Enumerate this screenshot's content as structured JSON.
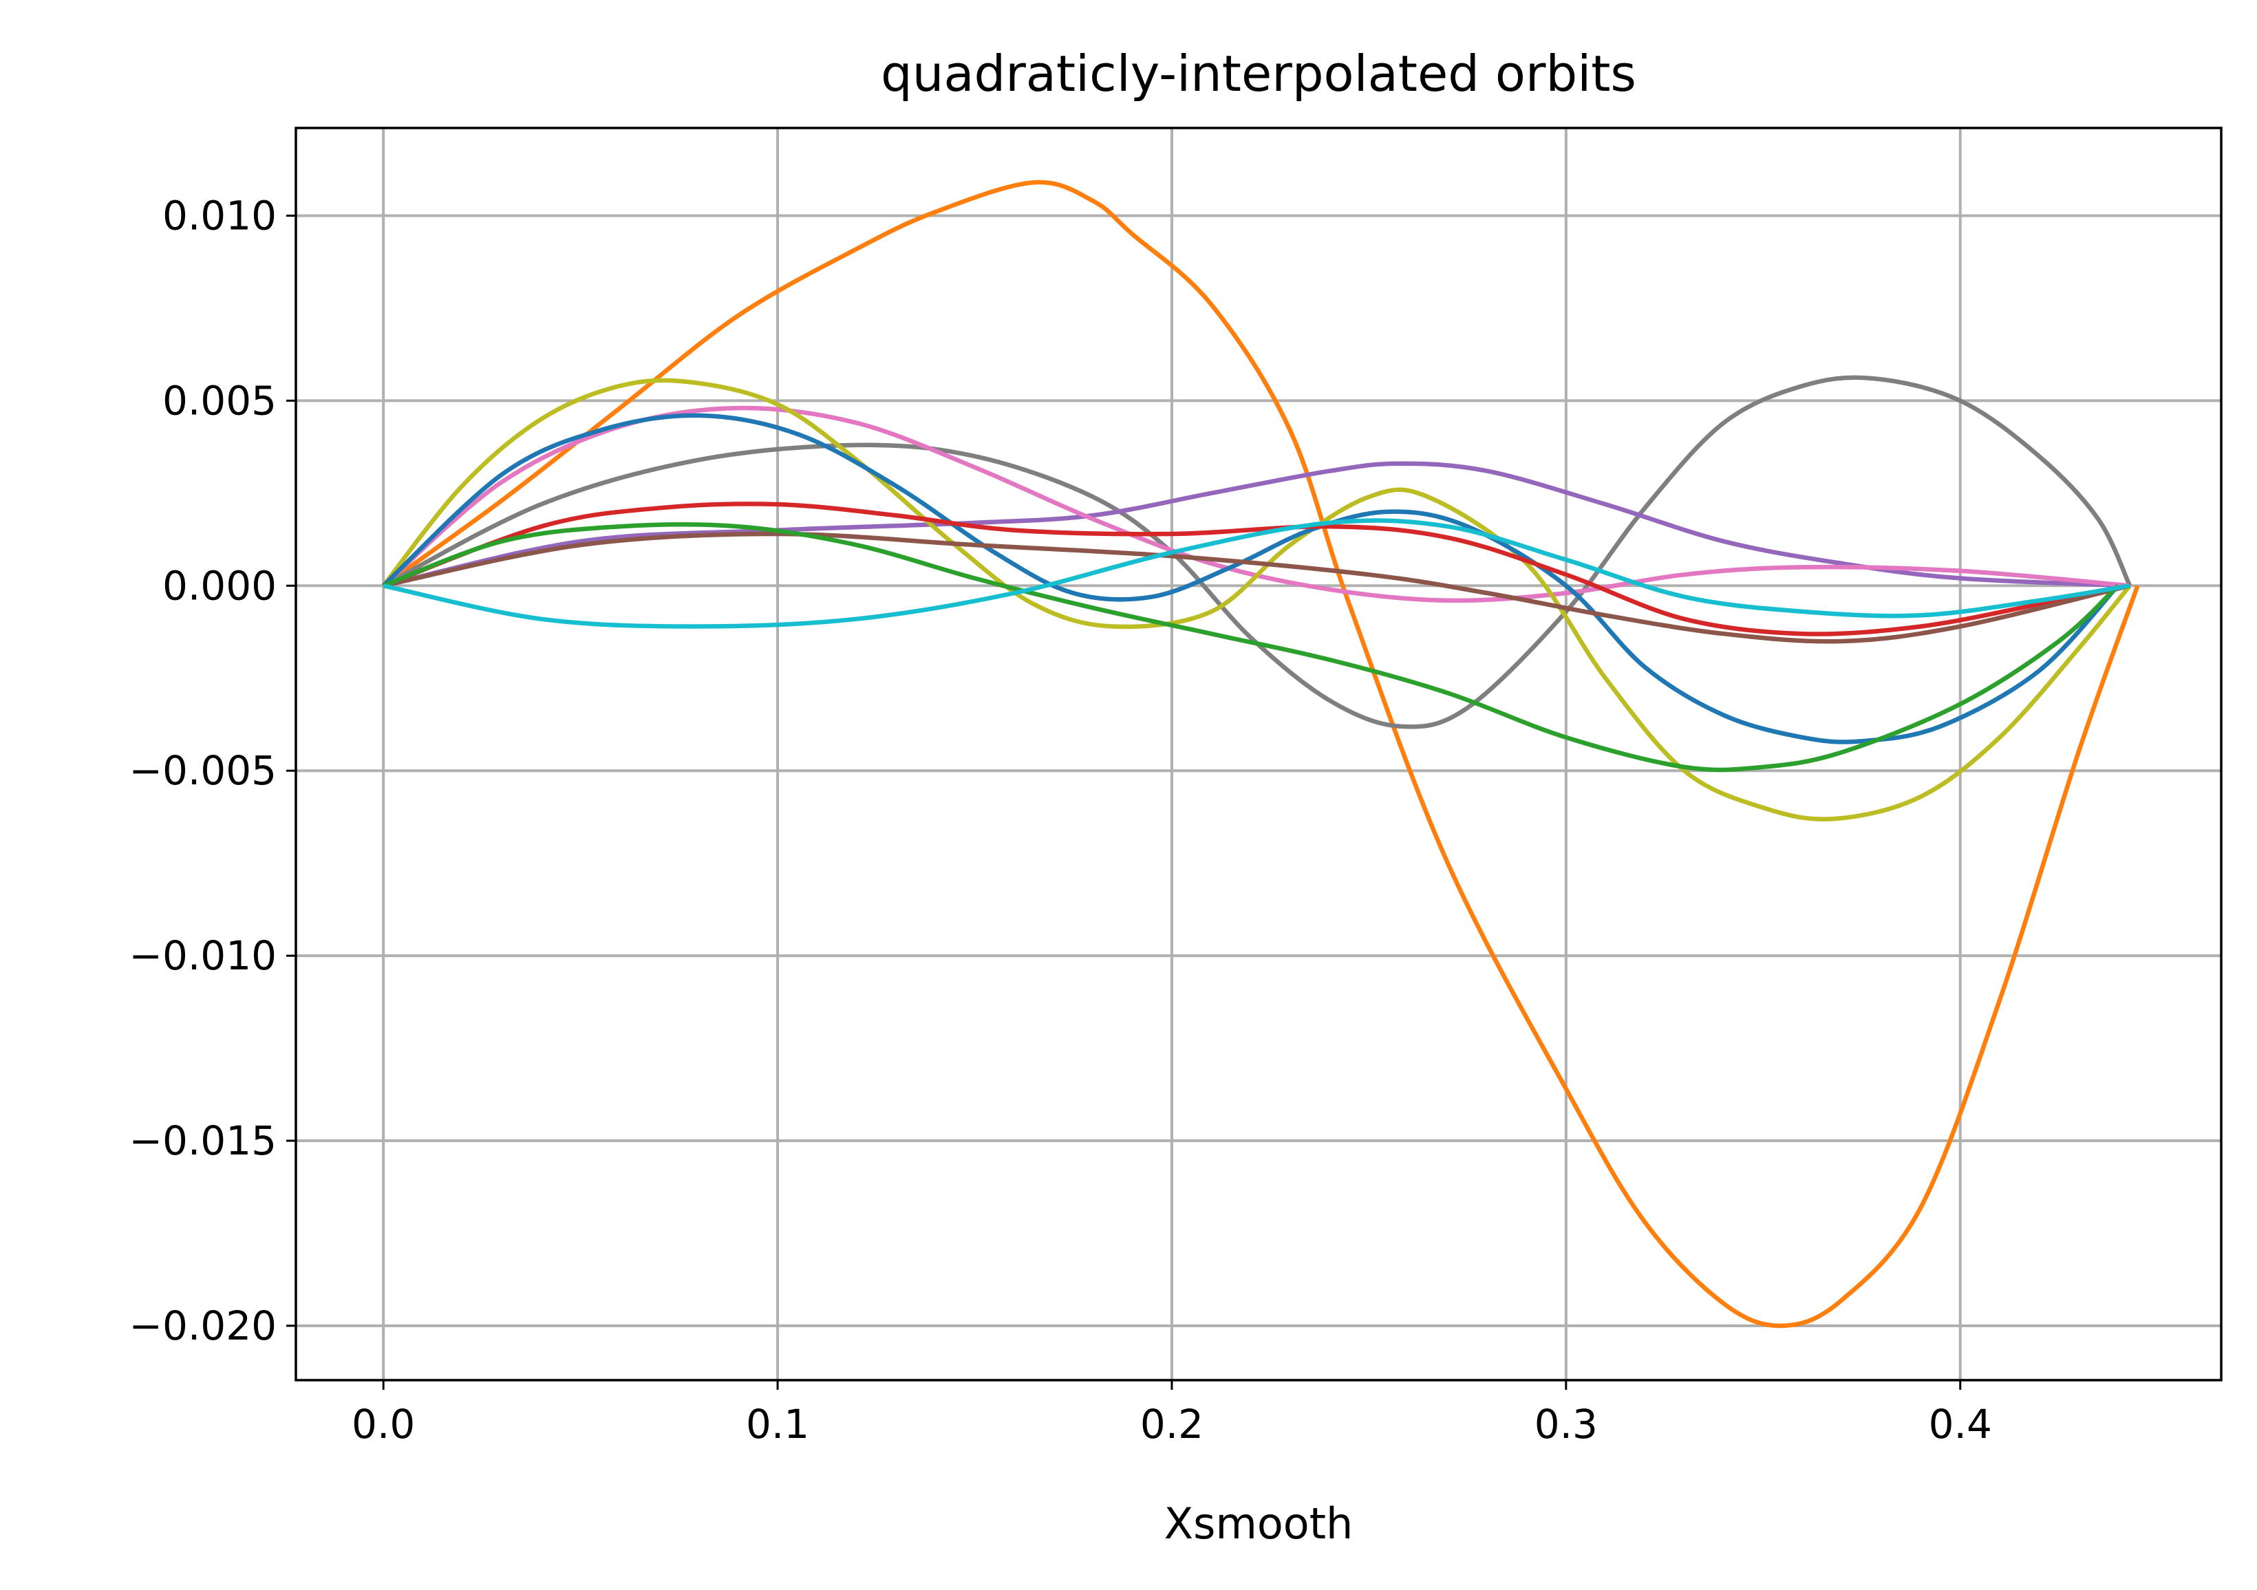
{
  "chart_data": {
    "type": "line",
    "title": "quadraticly-interpolated orbits",
    "xlabel": "Xsmooth",
    "ylabel": "",
    "xlim": [
      -0.0222,
      0.4662
    ],
    "ylim": [
      -0.02147,
      0.01237
    ],
    "xticks": [
      0.0,
      0.1,
      0.2,
      0.3,
      0.4
    ],
    "xtick_labels": [
      "0.0",
      "0.1",
      "0.2",
      "0.3",
      "0.4"
    ],
    "yticks": [
      0.01,
      0.005,
      0.0,
      -0.005,
      -0.01,
      -0.015,
      -0.02
    ],
    "ytick_labels": [
      "0.010",
      "0.005",
      "0.000",
      "−0.005",
      "−0.010",
      "−0.015",
      "−0.020"
    ],
    "grid": true,
    "legend": "none",
    "series": [
      {
        "color": "#ff7f0e",
        "points": [
          [
            0,
            0
          ],
          [
            0.03,
            0.0023
          ],
          [
            0.06,
            0.0048
          ],
          [
            0.09,
            0.0073
          ],
          [
            0.12,
            0.0091
          ],
          [
            0.14,
            0.0101
          ],
          [
            0.165,
            0.0109
          ],
          [
            0.18,
            0.0104
          ],
          [
            0.19,
            0.0095
          ],
          [
            0.21,
            0.0076
          ],
          [
            0.23,
            0.0042
          ],
          [
            0.245,
            -0.0005
          ],
          [
            0.27,
            -0.0075
          ],
          [
            0.3,
            -0.0136
          ],
          [
            0.32,
            -0.0172
          ],
          [
            0.34,
            -0.0194
          ],
          [
            0.355,
            -0.02
          ],
          [
            0.37,
            -0.0193
          ],
          [
            0.39,
            -0.0168
          ],
          [
            0.41,
            -0.0112
          ],
          [
            0.43,
            -0.0045
          ],
          [
            0.445,
            0
          ]
        ]
      },
      {
        "color": "#7f7f7f",
        "points": [
          [
            0,
            0
          ],
          [
            0.04,
            0.0022
          ],
          [
            0.08,
            0.0034
          ],
          [
            0.12,
            0.0038
          ],
          [
            0.15,
            0.0035
          ],
          [
            0.18,
            0.0024
          ],
          [
            0.2,
            0.0009
          ],
          [
            0.22,
            -0.0014
          ],
          [
            0.24,
            -0.0031
          ],
          [
            0.258,
            -0.0038
          ],
          [
            0.275,
            -0.0033
          ],
          [
            0.3,
            -0.0007
          ],
          [
            0.32,
            0.0021
          ],
          [
            0.34,
            0.0044
          ],
          [
            0.36,
            0.0054
          ],
          [
            0.378,
            0.0056
          ],
          [
            0.4,
            0.005
          ],
          [
            0.42,
            0.0035
          ],
          [
            0.435,
            0.0018
          ],
          [
            0.443,
            0
          ]
        ]
      },
      {
        "color": "#9467bd",
        "points": [
          [
            0,
            0
          ],
          [
            0.05,
            0.0012
          ],
          [
            0.1,
            0.0015
          ],
          [
            0.15,
            0.0017
          ],
          [
            0.18,
            0.0019
          ],
          [
            0.21,
            0.0025
          ],
          [
            0.24,
            0.0031
          ],
          [
            0.258,
            0.0033
          ],
          [
            0.28,
            0.0031
          ],
          [
            0.31,
            0.0022
          ],
          [
            0.34,
            0.0012
          ],
          [
            0.37,
            0.0006
          ],
          [
            0.4,
            0.0002
          ],
          [
            0.443,
            0
          ]
        ]
      },
      {
        "color": "#e377c2",
        "points": [
          [
            0,
            0
          ],
          [
            0.03,
            0.0028
          ],
          [
            0.06,
            0.0043
          ],
          [
            0.09,
            0.0048
          ],
          [
            0.12,
            0.0044
          ],
          [
            0.15,
            0.0032
          ],
          [
            0.18,
            0.0018
          ],
          [
            0.21,
            0.0006
          ],
          [
            0.24,
            -0.0001
          ],
          [
            0.27,
            -0.0004
          ],
          [
            0.3,
            -0.0002
          ],
          [
            0.33,
            0.0003
          ],
          [
            0.36,
            0.0005
          ],
          [
            0.4,
            0.0004
          ],
          [
            0.443,
            0
          ]
        ]
      },
      {
        "color": "#bcbd22",
        "points": [
          [
            0,
            0
          ],
          [
            0.02,
            0.0027
          ],
          [
            0.04,
            0.0045
          ],
          [
            0.06,
            0.0054
          ],
          [
            0.078,
            0.0055
          ],
          [
            0.1,
            0.0049
          ],
          [
            0.12,
            0.0034
          ],
          [
            0.145,
            0.0011
          ],
          [
            0.165,
            -0.0005
          ],
          [
            0.185,
            -0.0011
          ],
          [
            0.21,
            -0.0007
          ],
          [
            0.23,
            0.0011
          ],
          [
            0.25,
            0.0024
          ],
          [
            0.265,
            0.0024
          ],
          [
            0.29,
            0.0006
          ],
          [
            0.31,
            -0.0025
          ],
          [
            0.33,
            -0.005
          ],
          [
            0.35,
            -0.006
          ],
          [
            0.368,
            -0.0063
          ],
          [
            0.39,
            -0.0057
          ],
          [
            0.41,
            -0.0041
          ],
          [
            0.43,
            -0.0017
          ],
          [
            0.443,
            0
          ]
        ]
      },
      {
        "color": "#1f77b4",
        "points": [
          [
            0,
            0
          ],
          [
            0.03,
            0.003
          ],
          [
            0.055,
            0.0042
          ],
          [
            0.08,
            0.0046
          ],
          [
            0.105,
            0.0041
          ],
          [
            0.13,
            0.0027
          ],
          [
            0.155,
            0.0009
          ],
          [
            0.175,
            -0.0002
          ],
          [
            0.195,
            -0.0003
          ],
          [
            0.215,
            0.0005
          ],
          [
            0.235,
            0.0015
          ],
          [
            0.255,
            0.002
          ],
          [
            0.275,
            0.0016
          ],
          [
            0.3,
            0.0
          ],
          [
            0.32,
            -0.0022
          ],
          [
            0.34,
            -0.0035
          ],
          [
            0.36,
            -0.0041
          ],
          [
            0.375,
            -0.0042
          ],
          [
            0.395,
            -0.0038
          ],
          [
            0.42,
            -0.0023
          ],
          [
            0.44,
            0
          ]
        ]
      },
      {
        "color": "#d62728",
        "points": [
          [
            0,
            0
          ],
          [
            0.04,
            0.0016
          ],
          [
            0.07,
            0.0021
          ],
          [
            0.1,
            0.0022
          ],
          [
            0.13,
            0.0019
          ],
          [
            0.16,
            0.0015
          ],
          [
            0.2,
            0.0014
          ],
          [
            0.24,
            0.0016
          ],
          [
            0.27,
            0.0013
          ],
          [
            0.3,
            0.0003
          ],
          [
            0.33,
            -0.0009
          ],
          [
            0.36,
            -0.0013
          ],
          [
            0.39,
            -0.0011
          ],
          [
            0.42,
            -0.0005
          ],
          [
            0.443,
            0
          ]
        ]
      },
      {
        "color": "#8c564b",
        "points": [
          [
            0,
            0
          ],
          [
            0.05,
            0.0011
          ],
          [
            0.1,
            0.0014
          ],
          [
            0.15,
            0.0011
          ],
          [
            0.2,
            0.0008
          ],
          [
            0.25,
            0.0003
          ],
          [
            0.28,
            -0.0002
          ],
          [
            0.31,
            -0.0008
          ],
          [
            0.34,
            -0.0013
          ],
          [
            0.37,
            -0.0015
          ],
          [
            0.4,
            -0.0011
          ],
          [
            0.443,
            0
          ]
        ]
      },
      {
        "color": "#2ca02c",
        "points": [
          [
            0,
            0
          ],
          [
            0.03,
            0.0012
          ],
          [
            0.06,
            0.0016
          ],
          [
            0.09,
            0.0016
          ],
          [
            0.12,
            0.0011
          ],
          [
            0.15,
            0.0002
          ],
          [
            0.18,
            -0.0006
          ],
          [
            0.21,
            -0.0013
          ],
          [
            0.24,
            -0.002
          ],
          [
            0.27,
            -0.0029
          ],
          [
            0.3,
            -0.0041
          ],
          [
            0.33,
            -0.0049
          ],
          [
            0.35,
            -0.0049
          ],
          [
            0.37,
            -0.0045
          ],
          [
            0.4,
            -0.0032
          ],
          [
            0.425,
            -0.0015
          ],
          [
            0.44,
            0
          ]
        ]
      },
      {
        "color": "#17becf",
        "points": [
          [
            0,
            0
          ],
          [
            0.04,
            -0.0009
          ],
          [
            0.08,
            -0.0011
          ],
          [
            0.12,
            -0.0009
          ],
          [
            0.16,
            -0.0002
          ],
          [
            0.2,
            0.0009
          ],
          [
            0.24,
            0.0017
          ],
          [
            0.27,
            0.0016
          ],
          [
            0.3,
            0.0007
          ],
          [
            0.33,
            -0.0003
          ],
          [
            0.36,
            -0.0007
          ],
          [
            0.39,
            -0.0008
          ],
          [
            0.42,
            -0.0004
          ],
          [
            0.443,
            0
          ]
        ]
      }
    ]
  }
}
